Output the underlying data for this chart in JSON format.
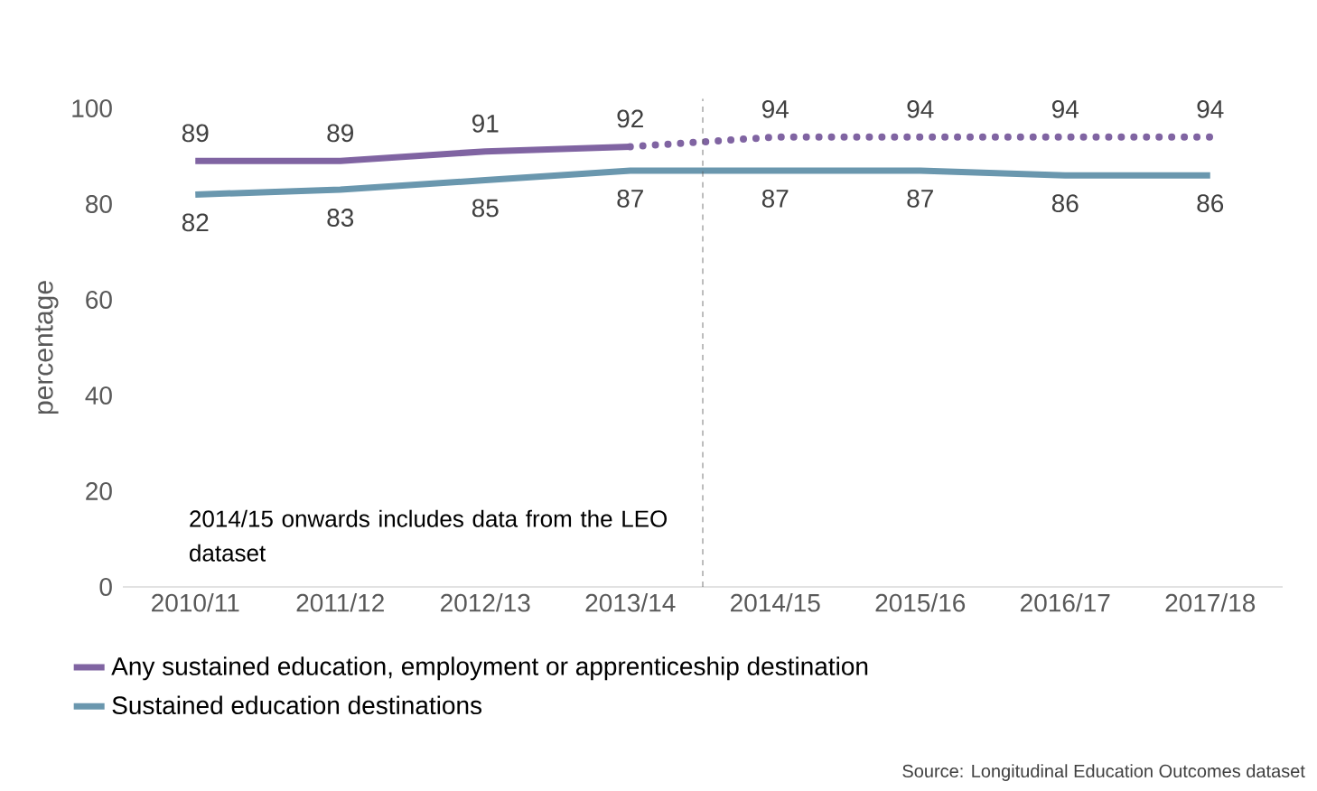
{
  "chart_data": {
    "type": "line",
    "ylabel": "percentage",
    "categories": [
      "2010/11",
      "2011/12",
      "2012/13",
      "2013/14",
      "2014/15",
      "2015/16",
      "2016/17",
      "2017/18"
    ],
    "series": [
      {
        "name": "Any sustained education, employment or apprenticeship destination",
        "color": "#8064a2",
        "values": [
          89,
          89,
          91,
          92,
          null,
          null,
          null,
          null
        ],
        "value_labels": [
          "89",
          "89",
          "91",
          "92",
          null,
          null,
          null,
          null
        ],
        "line_style": "solid"
      },
      {
        "color": "#8064a2",
        "values": [
          null,
          null,
          null,
          92,
          94,
          94,
          94,
          94
        ],
        "value_labels": [
          null,
          null,
          null,
          null,
          "94",
          "94",
          "94",
          "94"
        ],
        "line_style": "dotted"
      },
      {
        "name": "Sustained education destinations",
        "color": "#6a97ae",
        "values": [
          82,
          83,
          85,
          87,
          87,
          87,
          86,
          86
        ],
        "value_labels": [
          "82",
          "83",
          "85",
          "87",
          "87",
          "87",
          "86",
          "86"
        ],
        "line_style": "solid"
      }
    ],
    "ylim": [
      0,
      100
    ],
    "yticks": [
      0,
      20,
      40,
      60,
      80,
      100
    ],
    "grid": false,
    "legend": "bottom",
    "marker": "none",
    "annotations": [
      "2014/15 onwards includes data from the LEO dataset",
      "Source: Longitudinal Education Outcomes dataset"
    ]
  }
}
